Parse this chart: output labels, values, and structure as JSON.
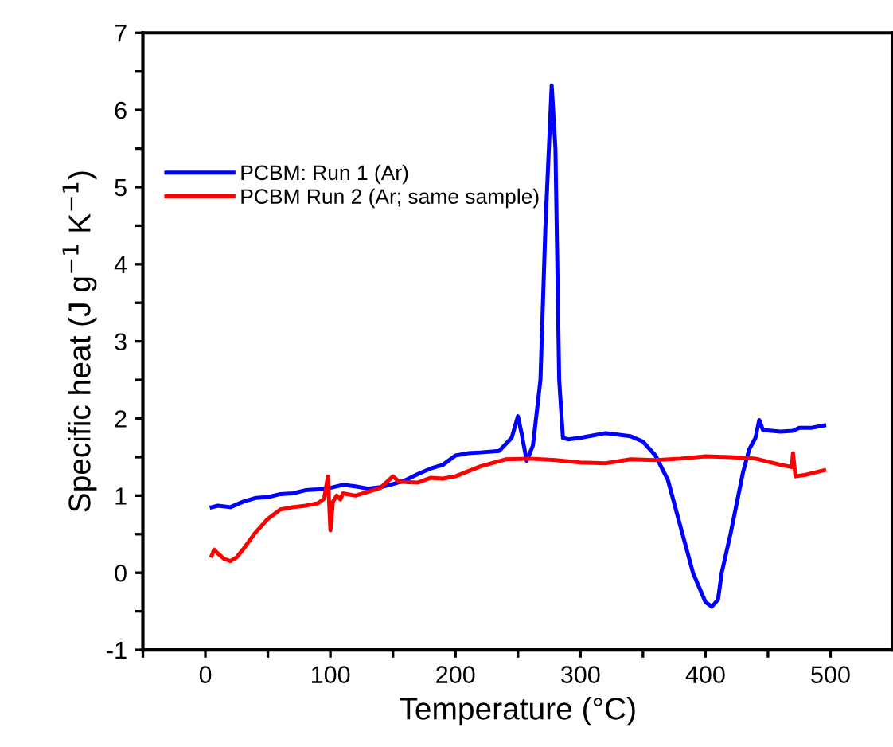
{
  "chart_data": {
    "type": "line",
    "xlabel": "Temperature (°C)",
    "ylabel": "Specific heat (J g$^{−1}$ K$^{−1}$)",
    "xlim": [
      -50,
      550
    ],
    "ylim": [
      -1,
      7
    ],
    "xticks": [
      {
        "value": -50,
        "label": null
      },
      0,
      {
        "value": 50,
        "label": null
      },
      100,
      {
        "value": 150,
        "label": null
      },
      200,
      {
        "value": 250,
        "label": null
      },
      300,
      {
        "value": 350,
        "label": null
      },
      400,
      {
        "value": 450,
        "label": null
      },
      500
    ],
    "yticks": [
      -1,
      {
        "value": -0.5,
        "label": null
      },
      0,
      {
        "value": 0.5,
        "label": null
      },
      1,
      {
        "value": 1.5,
        "label": null
      },
      2,
      {
        "value": 2.5,
        "label": null
      },
      3,
      {
        "value": 3.5,
        "label": null
      },
      4,
      {
        "value": 4.5,
        "label": null
      },
      5,
      {
        "value": 5.5,
        "label": null
      },
      6,
      {
        "value": 6.5,
        "label": null
      },
      7
    ],
    "grid": false,
    "legend": "top left",
    "line_style": "solid",
    "marker": "none",
    "series": [
      {
        "name": "PCBM: Run 1 (Ar)",
        "color": "#0000ff",
        "x": [
          5,
          10,
          20,
          30,
          40,
          50,
          60,
          70,
          80,
          90,
          100,
          110,
          120,
          130,
          140,
          150,
          160,
          170,
          180,
          190,
          200,
          210,
          220,
          235,
          245,
          250,
          253,
          257,
          262,
          268,
          272,
          277,
          280,
          283,
          286,
          290,
          300,
          320,
          340,
          350,
          360,
          370,
          380,
          390,
          400,
          405,
          410,
          413,
          420,
          430,
          435,
          440,
          443,
          446,
          460,
          470,
          475,
          485,
          495
        ],
        "values": [
          0.85,
          0.87,
          0.85,
          0.92,
          0.97,
          0.98,
          1.02,
          1.03,
          1.07,
          1.08,
          1.1,
          1.14,
          1.12,
          1.09,
          1.11,
          1.15,
          1.2,
          1.28,
          1.35,
          1.4,
          1.52,
          1.55,
          1.56,
          1.58,
          1.75,
          2.03,
          1.8,
          1.45,
          1.65,
          2.5,
          4.5,
          6.32,
          5.5,
          2.5,
          1.75,
          1.73,
          1.75,
          1.81,
          1.77,
          1.7,
          1.52,
          1.2,
          0.6,
          0.0,
          -0.38,
          -0.44,
          -0.35,
          0.0,
          0.5,
          1.3,
          1.6,
          1.75,
          1.98,
          1.85,
          1.83,
          1.84,
          1.88,
          1.88,
          1.91
        ]
      },
      {
        "name": "PCBM Run 2 (Ar; same sample)",
        "color": "#ff0000",
        "x": [
          5,
          7,
          10,
          15,
          20,
          25,
          30,
          40,
          50,
          60,
          70,
          80,
          90,
          95,
          98,
          100,
          102,
          105,
          108,
          110,
          120,
          130,
          140,
          150,
          155,
          170,
          180,
          190,
          200,
          220,
          240,
          260,
          280,
          300,
          320,
          340,
          360,
          380,
          400,
          420,
          440,
          460,
          469,
          470,
          472,
          480,
          495
        ],
        "values": [
          0.22,
          0.3,
          0.25,
          0.18,
          0.15,
          0.2,
          0.3,
          0.52,
          0.7,
          0.82,
          0.85,
          0.87,
          0.9,
          0.96,
          1.25,
          0.55,
          0.92,
          1.0,
          0.95,
          1.03,
          1.0,
          1.05,
          1.1,
          1.25,
          1.18,
          1.17,
          1.23,
          1.22,
          1.25,
          1.38,
          1.47,
          1.48,
          1.46,
          1.43,
          1.42,
          1.47,
          1.46,
          1.48,
          1.51,
          1.5,
          1.48,
          1.4,
          1.37,
          1.55,
          1.25,
          1.27,
          1.33
        ]
      }
    ]
  }
}
